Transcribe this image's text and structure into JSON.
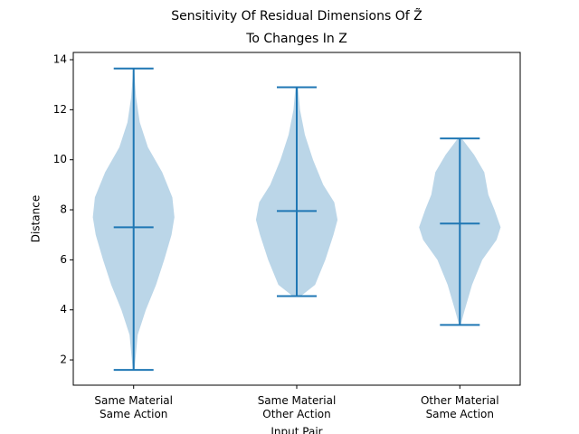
{
  "chart_data": {
    "type": "violin",
    "title": [
      "Sensitivity Of Residual Dimensions Of Z̃",
      "To Changes In Z"
    ],
    "x_label": "Input Pair",
    "y_label": "Distance",
    "categories": [
      "Same Material\nSame Action",
      "Same Material\nOther Action",
      "Other Material\nSame Action"
    ],
    "color": "#1f77b4",
    "ylim": [
      0.99,
      14.29
    ],
    "yticks": [
      2,
      4,
      6,
      8,
      10,
      12,
      14
    ],
    "violins": [
      {
        "min": 1.6,
        "max": 13.65,
        "mean": 7.3,
        "density_y": [
          1.6,
          3,
          4,
          5,
          6,
          7,
          7.7,
          8.5,
          9.5,
          10.5,
          11.5,
          12.5,
          13.65
        ],
        "density": [
          0.02,
          0.1,
          0.3,
          0.55,
          0.75,
          0.93,
          1.0,
          0.95,
          0.7,
          0.35,
          0.15,
          0.06,
          0.01
        ]
      },
      {
        "min": 4.55,
        "max": 12.9,
        "mean": 7.95,
        "density_y": [
          4.55,
          5,
          6,
          7,
          7.6,
          8.3,
          9,
          10,
          11,
          12,
          12.9
        ],
        "density": [
          0.1,
          0.45,
          0.7,
          0.9,
          1.0,
          0.92,
          0.65,
          0.4,
          0.2,
          0.08,
          0.03
        ]
      },
      {
        "min": 3.4,
        "max": 10.85,
        "mean": 7.45,
        "density_y": [
          3.4,
          4,
          5,
          6,
          6.8,
          7.3,
          8,
          8.6,
          9.5,
          10.2,
          10.85
        ],
        "density": [
          0.02,
          0.12,
          0.3,
          0.55,
          0.9,
          1.0,
          0.85,
          0.7,
          0.6,
          0.35,
          0.05
        ]
      }
    ]
  }
}
